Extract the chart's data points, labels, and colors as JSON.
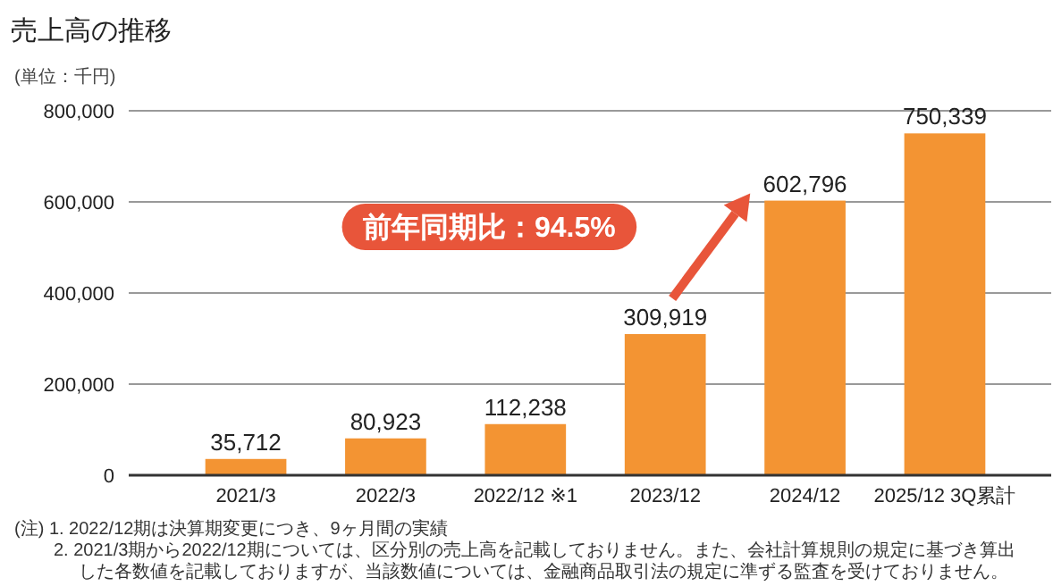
{
  "chart_data": {
    "type": "bar",
    "title": "売上高の推移",
    "ylabel": "(単位：千円)",
    "categories": [
      "2021/3",
      "2022/3",
      "2022/12 ※1",
      "2023/12",
      "2024/12",
      "2025/12 3Q累計"
    ],
    "values": [
      35712,
      80923,
      112238,
      309919,
      602796,
      750339
    ],
    "value_labels": [
      "35,712",
      "80,923",
      "112,238",
      "309,919",
      "602,796",
      "750,339"
    ],
    "color": "#f39433",
    "ylim": [
      0,
      800000
    ],
    "yticks": [
      {
        "value": 0,
        "label": "0"
      },
      {
        "value": 200000,
        "label": "200,000"
      },
      {
        "value": 400000,
        "label": "400,000"
      },
      {
        "value": 600000,
        "label": "600,000"
      },
      {
        "value": 800000,
        "label": "800,000"
      }
    ],
    "grid": "y",
    "annotations": [
      "前年同期比：94.5%",
      "(注) 1. 2022/12期は決算期変更につき、9ヶ月間の実績",
      "2. 2021/3期から2022/12期については、区分別の売上高を記載しておりません。また、会社計算規則の規定に基づき算出した各数値を記載しておりますが、当該数値については、金融商品取引法の規定に準ずる監査を受けておりません。"
    ]
  }
}
